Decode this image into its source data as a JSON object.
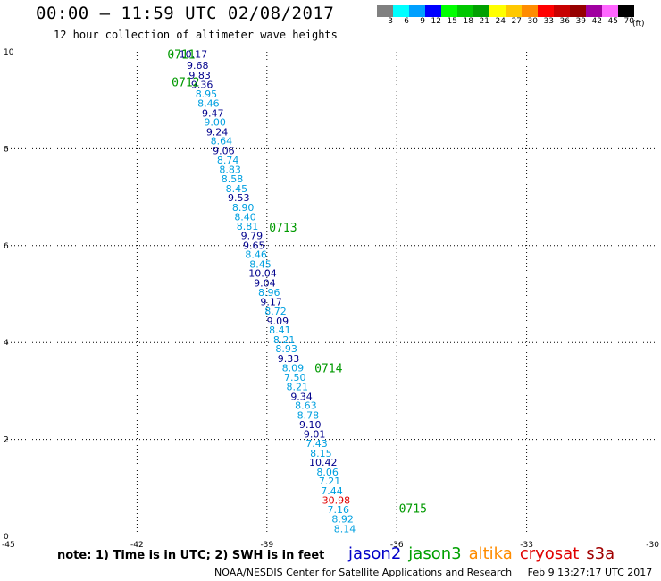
{
  "header": {
    "title": "00:00 – 11:59 UTC 02/08/2017",
    "subtitle": "12 hour collection of altimeter wave heights"
  },
  "colorbar": {
    "unit_label": "(ft)",
    "bins": [
      {
        "label": "3",
        "color": "#808080"
      },
      {
        "label": "6",
        "color": "#00ffff"
      },
      {
        "label": "9",
        "color": "#00a0ff"
      },
      {
        "label": "12",
        "color": "#0000ff"
      },
      {
        "label": "15",
        "color": "#00ff00"
      },
      {
        "label": "18",
        "color": "#00c800"
      },
      {
        "label": "21",
        "color": "#00a000"
      },
      {
        "label": "24",
        "color": "#ffff00"
      },
      {
        "label": "27",
        "color": "#ffc800"
      },
      {
        "label": "30",
        "color": "#ff8c00"
      },
      {
        "label": "33",
        "color": "#ff0000"
      },
      {
        "label": "36",
        "color": "#c80000"
      },
      {
        "label": "39",
        "color": "#960000"
      },
      {
        "label": "42",
        "color": "#a000a0"
      },
      {
        "label": "45",
        "color": "#ff66ff"
      },
      {
        "label": "70",
        "color": "#000000"
      }
    ]
  },
  "note": "note: 1) Time is in UTC; 2) SWH is in feet",
  "legend": [
    {
      "label": "jason2",
      "color": "#0000c8"
    },
    {
      "label": "jason3",
      "color": "#00a000"
    },
    {
      "label": "altika",
      "color": "#ff8c00"
    },
    {
      "label": "cryosat",
      "color": "#e00000"
    },
    {
      "label": "s3a",
      "color": "#a00000"
    }
  ],
  "footer": {
    "credit": "NOAA/NESDIS Center for Satellite Applications and Research",
    "timestamp": "Feb  9 13:27:17 UTC 2017"
  },
  "colors": {
    "jason2": "#00008c",
    "jason3": "#009900",
    "light": "#00a0e0",
    "high": "#e00000"
  },
  "chart_data": {
    "type": "scatter",
    "xlim": [
      -45,
      -30
    ],
    "ylim": [
      0,
      10
    ],
    "x_ticks": [
      "-45",
      "-42",
      "-39",
      "-36",
      "-33",
      "-30"
    ],
    "y_ticks": [
      "0",
      "2",
      "4",
      "6",
      "8",
      "10"
    ],
    "grid": true,
    "time_labels": [
      {
        "text": "0711",
        "x": -41.3,
        "y": 9.95
      },
      {
        "text": "0712",
        "x": -41.2,
        "y": 9.38
      },
      {
        "text": "0713",
        "x": -38.95,
        "y": 6.38
      },
      {
        "text": "0714",
        "x": -37.9,
        "y": 3.48
      },
      {
        "text": "0715",
        "x": -35.95,
        "y": 0.58
      }
    ],
    "points": [
      {
        "x": -40.7,
        "y": 9.95,
        "value": "10.17",
        "c": "jason2"
      },
      {
        "x": -40.6,
        "y": 9.72,
        "value": "9.68",
        "c": "jason2"
      },
      {
        "x": -40.55,
        "y": 9.52,
        "value": "9.83",
        "c": "jason2"
      },
      {
        "x": -40.5,
        "y": 9.33,
        "value": "9.36",
        "c": "jason2"
      },
      {
        "x": -40.4,
        "y": 9.13,
        "value": "8.95",
        "c": "light"
      },
      {
        "x": -40.35,
        "y": 8.94,
        "value": "8.46",
        "c": "light"
      },
      {
        "x": -40.25,
        "y": 8.74,
        "value": "9.47",
        "c": "jason2"
      },
      {
        "x": -40.2,
        "y": 8.55,
        "value": "9.00",
        "c": "light"
      },
      {
        "x": -40.15,
        "y": 8.35,
        "value": "9.24",
        "c": "jason2"
      },
      {
        "x": -40.05,
        "y": 8.16,
        "value": "8.64",
        "c": "light"
      },
      {
        "x": -40.0,
        "y": 7.96,
        "value": "9.06",
        "c": "jason2"
      },
      {
        "x": -39.9,
        "y": 7.77,
        "value": "8.74",
        "c": "light"
      },
      {
        "x": -39.85,
        "y": 7.57,
        "value": "8.83",
        "c": "light"
      },
      {
        "x": -39.8,
        "y": 7.38,
        "value": "8.58",
        "c": "light"
      },
      {
        "x": -39.7,
        "y": 7.18,
        "value": "8.45",
        "c": "light"
      },
      {
        "x": -39.65,
        "y": 6.99,
        "value": "9.53",
        "c": "jason2"
      },
      {
        "x": -39.55,
        "y": 6.79,
        "value": "8.90",
        "c": "light"
      },
      {
        "x": -39.5,
        "y": 6.6,
        "value": "8.40",
        "c": "light"
      },
      {
        "x": -39.45,
        "y": 6.4,
        "value": "8.81",
        "c": "light"
      },
      {
        "x": -39.35,
        "y": 6.21,
        "value": "9.79",
        "c": "jason2"
      },
      {
        "x": -39.3,
        "y": 6.01,
        "value": "9.65",
        "c": "jason2"
      },
      {
        "x": -39.25,
        "y": 5.82,
        "value": "8.46",
        "c": "light"
      },
      {
        "x": -39.15,
        "y": 5.62,
        "value": "8.45",
        "c": "light"
      },
      {
        "x": -39.1,
        "y": 5.43,
        "value": "10.04",
        "c": "jason2"
      },
      {
        "x": -39.05,
        "y": 5.23,
        "value": "9.04",
        "c": "jason2"
      },
      {
        "x": -38.95,
        "y": 5.04,
        "value": "8.96",
        "c": "light"
      },
      {
        "x": -38.9,
        "y": 4.84,
        "value": "9.17",
        "c": "jason2"
      },
      {
        "x": -38.8,
        "y": 4.65,
        "value": "8.72",
        "c": "light"
      },
      {
        "x": -38.75,
        "y": 4.45,
        "value": "9.09",
        "c": "jason2"
      },
      {
        "x": -38.7,
        "y": 4.26,
        "value": "8.41",
        "c": "light"
      },
      {
        "x": -38.6,
        "y": 4.06,
        "value": "8.21",
        "c": "light"
      },
      {
        "x": -38.55,
        "y": 3.87,
        "value": "8.93",
        "c": "light"
      },
      {
        "x": -38.5,
        "y": 3.67,
        "value": "9.33",
        "c": "jason2"
      },
      {
        "x": -38.4,
        "y": 3.48,
        "value": "8.09",
        "c": "light"
      },
      {
        "x": -38.35,
        "y": 3.28,
        "value": "7.50",
        "c": "light"
      },
      {
        "x": -38.3,
        "y": 3.09,
        "value": "8.21",
        "c": "light"
      },
      {
        "x": -38.2,
        "y": 2.89,
        "value": "9.34",
        "c": "jason2"
      },
      {
        "x": -38.1,
        "y": 2.7,
        "value": "8.63",
        "c": "light"
      },
      {
        "x": -38.05,
        "y": 2.5,
        "value": "8.78",
        "c": "light"
      },
      {
        "x": -38.0,
        "y": 2.31,
        "value": "9.10",
        "c": "jason2"
      },
      {
        "x": -37.9,
        "y": 2.11,
        "value": "9.01",
        "c": "jason2"
      },
      {
        "x": -37.85,
        "y": 1.92,
        "value": "7.43",
        "c": "light"
      },
      {
        "x": -37.75,
        "y": 1.72,
        "value": "8.15",
        "c": "light"
      },
      {
        "x": -37.7,
        "y": 1.53,
        "value": "10.42",
        "c": "jason2"
      },
      {
        "x": -37.6,
        "y": 1.33,
        "value": "8.06",
        "c": "light"
      },
      {
        "x": -37.55,
        "y": 1.14,
        "value": "7.21",
        "c": "light"
      },
      {
        "x": -37.5,
        "y": 0.94,
        "value": "7.44",
        "c": "light"
      },
      {
        "x": -37.4,
        "y": 0.75,
        "value": "30.98",
        "c": "high"
      },
      {
        "x": -37.35,
        "y": 0.55,
        "value": "7.16",
        "c": "light"
      },
      {
        "x": -37.25,
        "y": 0.36,
        "value": "8.92",
        "c": "light"
      },
      {
        "x": -37.2,
        "y": 0.16,
        "value": "8.14",
        "c": "light"
      }
    ]
  }
}
